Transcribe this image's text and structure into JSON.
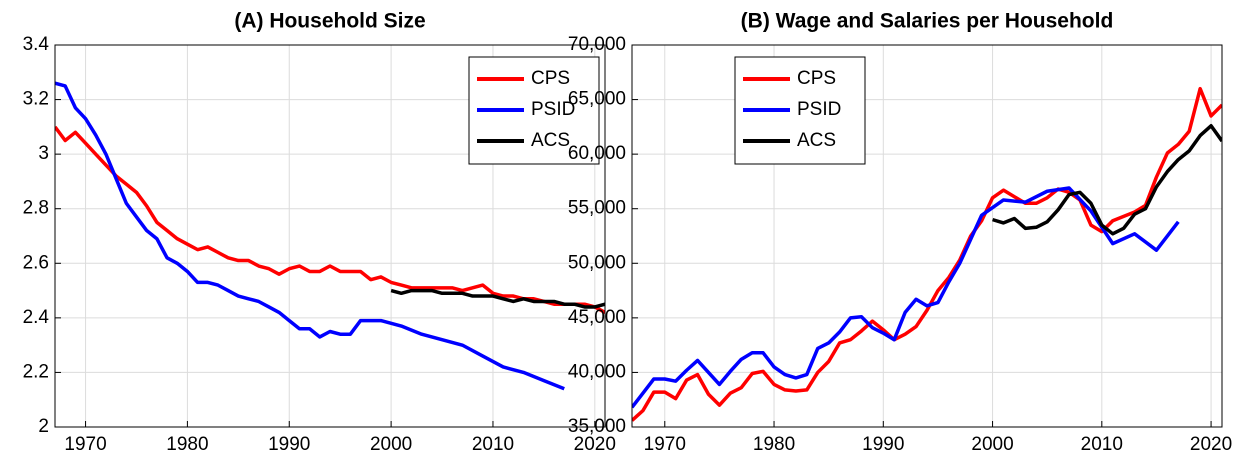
{
  "chart_data": [
    {
      "type": "line",
      "title": "(A) Household Size",
      "grid": true,
      "legend": "northeast",
      "xlim": [
        1967,
        2021
      ],
      "xticks": [
        1970,
        1980,
        1990,
        2000,
        2010,
        2020
      ],
      "ylim": [
        2,
        3.4
      ],
      "yticks": [
        2,
        2.2,
        2.4,
        2.6,
        2.8,
        3,
        3.2,
        3.4
      ],
      "series": [
        {
          "name": "CPS",
          "color": "#ff0000",
          "x": [
            1967,
            1968,
            1969,
            1970,
            1971,
            1972,
            1973,
            1974,
            1975,
            1976,
            1977,
            1978,
            1979,
            1980,
            1981,
            1982,
            1983,
            1984,
            1985,
            1986,
            1987,
            1988,
            1989,
            1990,
            1991,
            1992,
            1993,
            1994,
            1995,
            1996,
            1997,
            1998,
            1999,
            2000,
            2001,
            2002,
            2003,
            2004,
            2005,
            2006,
            2007,
            2008,
            2009,
            2010,
            2011,
            2012,
            2013,
            2014,
            2015,
            2016,
            2017,
            2018,
            2019,
            2020,
            2021
          ],
          "values": [
            3.1,
            3.05,
            3.08,
            3.04,
            3.0,
            2.96,
            2.92,
            2.89,
            2.86,
            2.81,
            2.75,
            2.72,
            2.69,
            2.67,
            2.65,
            2.66,
            2.64,
            2.62,
            2.61,
            2.61,
            2.59,
            2.58,
            2.56,
            2.58,
            2.59,
            2.57,
            2.57,
            2.59,
            2.57,
            2.57,
            2.57,
            2.54,
            2.55,
            2.53,
            2.52,
            2.51,
            2.51,
            2.51,
            2.51,
            2.51,
            2.5,
            2.51,
            2.52,
            2.49,
            2.48,
            2.48,
            2.47,
            2.47,
            2.46,
            2.45,
            2.45,
            2.45,
            2.45,
            2.44,
            2.42
          ]
        },
        {
          "name": "PSID",
          "color": "#0000ff",
          "x": [
            1967,
            1968,
            1969,
            1970,
            1971,
            1972,
            1973,
            1974,
            1975,
            1976,
            1977,
            1978,
            1979,
            1980,
            1981,
            1982,
            1983,
            1984,
            1985,
            1986,
            1987,
            1988,
            1989,
            1990,
            1991,
            1992,
            1993,
            1994,
            1995,
            1996,
            1997,
            1999,
            2001,
            2003,
            2005,
            2007,
            2009,
            2011,
            2013,
            2015,
            2017
          ],
          "values": [
            3.26,
            3.25,
            3.17,
            3.13,
            3.07,
            3.0,
            2.91,
            2.82,
            2.77,
            2.72,
            2.69,
            2.62,
            2.6,
            2.57,
            2.53,
            2.53,
            2.52,
            2.5,
            2.48,
            2.47,
            2.46,
            2.44,
            2.42,
            2.39,
            2.36,
            2.36,
            2.33,
            2.35,
            2.34,
            2.34,
            2.39,
            2.39,
            2.37,
            2.34,
            2.32,
            2.3,
            2.26,
            2.22,
            2.2,
            2.17,
            2.14
          ]
        },
        {
          "name": "ACS",
          "color": "#000000",
          "x": [
            2000,
            2001,
            2002,
            2003,
            2004,
            2005,
            2006,
            2007,
            2008,
            2009,
            2010,
            2011,
            2012,
            2013,
            2014,
            2015,
            2016,
            2017,
            2018,
            2019,
            2020,
            2021
          ],
          "values": [
            2.5,
            2.49,
            2.5,
            2.5,
            2.5,
            2.49,
            2.49,
            2.49,
            2.48,
            2.48,
            2.48,
            2.47,
            2.46,
            2.47,
            2.46,
            2.46,
            2.46,
            2.45,
            2.45,
            2.44,
            2.44,
            2.45
          ]
        }
      ]
    },
    {
      "type": "line",
      "title": "(B) Wage and Salaries per Household",
      "grid": true,
      "legend": "northwest",
      "xlim": [
        1967,
        2021
      ],
      "xticks": [
        1970,
        1980,
        1990,
        2000,
        2010,
        2020
      ],
      "ylim": [
        35000,
        70000
      ],
      "yticks": [
        {
          "value": 35000,
          "label": "35,000"
        },
        {
          "value": 40000,
          "label": "40,000"
        },
        {
          "value": 45000,
          "label": "45,000"
        },
        {
          "value": 50000,
          "label": "50,000"
        },
        {
          "value": 55000,
          "label": "55,000"
        },
        {
          "value": 60000,
          "label": "60,000"
        },
        {
          "value": 65000,
          "label": "65,000"
        },
        {
          "value": 70000,
          "label": "70,000"
        }
      ],
      "series": [
        {
          "name": "CPS",
          "color": "#ff0000",
          "x": [
            1967,
            1968,
            1969,
            1970,
            1971,
            1972,
            1973,
            1974,
            1975,
            1976,
            1977,
            1978,
            1979,
            1980,
            1981,
            1982,
            1983,
            1984,
            1985,
            1986,
            1987,
            1988,
            1989,
            1990,
            1991,
            1992,
            1993,
            1994,
            1995,
            1996,
            1997,
            1998,
            1999,
            2000,
            2001,
            2002,
            2003,
            2004,
            2005,
            2006,
            2007,
            2008,
            2009,
            2010,
            2011,
            2012,
            2013,
            2014,
            2015,
            2016,
            2017,
            2018,
            2019,
            2020,
            2021
          ],
          "values": [
            35600,
            36500,
            38200,
            38200,
            37600,
            39300,
            39800,
            38000,
            37000,
            38100,
            38600,
            39900,
            40100,
            38900,
            38400,
            38300,
            38400,
            40000,
            41000,
            42700,
            43000,
            43800,
            44700,
            43900,
            43000,
            43500,
            44200,
            45700,
            47500,
            48700,
            50300,
            52500,
            53900,
            56000,
            56700,
            56100,
            55500,
            55500,
            56000,
            56800,
            56500,
            55800,
            53500,
            52900,
            53900,
            54300,
            54700,
            55300,
            57900,
            60100,
            60900,
            62100,
            66000,
            63500,
            64500
          ]
        },
        {
          "name": "PSID",
          "color": "#0000ff",
          "x": [
            1967,
            1968,
            1969,
            1970,
            1971,
            1972,
            1973,
            1974,
            1975,
            1976,
            1977,
            1978,
            1979,
            1980,
            1981,
            1982,
            1983,
            1984,
            1985,
            1986,
            1987,
            1988,
            1989,
            1990,
            1991,
            1992,
            1993,
            1994,
            1995,
            1996,
            1997,
            1999,
            2001,
            2003,
            2005,
            2007,
            2009,
            2011,
            2013,
            2015,
            2017
          ],
          "values": [
            36800,
            38100,
            39400,
            39400,
            39200,
            40200,
            41100,
            40000,
            38900,
            40100,
            41200,
            41800,
            41800,
            40500,
            39800,
            39500,
            39800,
            42200,
            42700,
            43700,
            45000,
            45100,
            44100,
            43600,
            43000,
            45500,
            46700,
            46100,
            46400,
            48300,
            50000,
            54400,
            55800,
            55600,
            56600,
            56900,
            54800,
            51800,
            52700,
            51200,
            53800
          ]
        },
        {
          "name": "ACS",
          "color": "#000000",
          "x": [
            2000,
            2001,
            2002,
            2003,
            2004,
            2005,
            2006,
            2007,
            2008,
            2009,
            2010,
            2011,
            2012,
            2013,
            2014,
            2015,
            2016,
            2017,
            2018,
            2019,
            2020,
            2021
          ],
          "values": [
            54000,
            53700,
            54100,
            53200,
            53300,
            53800,
            54900,
            56300,
            56500,
            55500,
            53500,
            52700,
            53200,
            54500,
            55000,
            57000,
            58400,
            59500,
            60300,
            61700,
            62600,
            61200
          ]
        }
      ]
    }
  ]
}
